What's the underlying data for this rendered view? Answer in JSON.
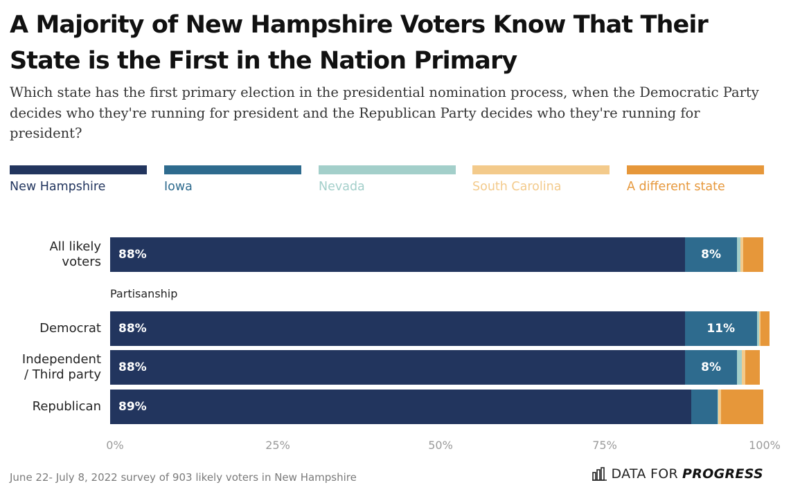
{
  "header": {
    "title": "A Majority of New Hampshire Voters Know That Their State is the First in the Nation Primary",
    "subtitle": "Which state has the first primary election in the presidential nomination process, when the Democratic Party decides who they're running for president and the Republican Party decides who they're running for president?"
  },
  "chart_data": {
    "type": "bar",
    "orientation": "horizontal",
    "stacked": true,
    "title": "A Majority of New Hampshire Voters Know That Their State is the First in the Nation Primary",
    "subtitle": "Which state has the first primary election in the presidential nomination process, when the Democratic Party decides who they're running for president and the Republican Party decides who they're running for president?",
    "xlim": [
      0,
      100
    ],
    "x_ticks": [
      "0%",
      "25%",
      "50%",
      "75%",
      "100%"
    ],
    "legend_position": "top",
    "group_label": "Partisanship",
    "categories": [
      "All likely voters",
      "Democrat",
      "Independent / Third party",
      "Republican"
    ],
    "series": [
      {
        "name": "New Hampshire",
        "color": "#22355e",
        "values": [
          88,
          88,
          88,
          89
        ],
        "labels": [
          "88%",
          "88%",
          "88%",
          "89%"
        ]
      },
      {
        "name": "Iowa",
        "color": "#2e6b8e",
        "values": [
          8,
          11,
          8,
          4
        ],
        "labels": [
          "8%",
          "11%",
          "8%",
          ""
        ]
      },
      {
        "name": "Nevada",
        "color": "#a3cfca",
        "values": [
          0.5,
          0.4,
          0.7,
          0.1
        ],
        "labels": [
          "",
          "",
          "",
          ""
        ]
      },
      {
        "name": "South Carolina",
        "color": "#f3ca8b",
        "values": [
          0.4,
          0.2,
          0.5,
          0.4
        ],
        "labels": [
          "",
          "",
          "",
          ""
        ]
      },
      {
        "name": "A different state",
        "color": "#e6973a",
        "values": [
          3.1,
          1.4,
          2.3,
          6.5
        ],
        "labels": [
          "",
          "",
          "",
          ""
        ]
      }
    ]
  },
  "row_labels": [
    [
      "All likely",
      "voters"
    ],
    [
      "Democrat"
    ],
    [
      "Independent",
      "/ Third party"
    ],
    [
      "Republican"
    ]
  ],
  "footer": {
    "source": "June 22- July 8, 2022 survey of 903 likely voters in New Hampshire",
    "logo_part1": "DATA FOR",
    "logo_part2": "PROGRESS"
  }
}
